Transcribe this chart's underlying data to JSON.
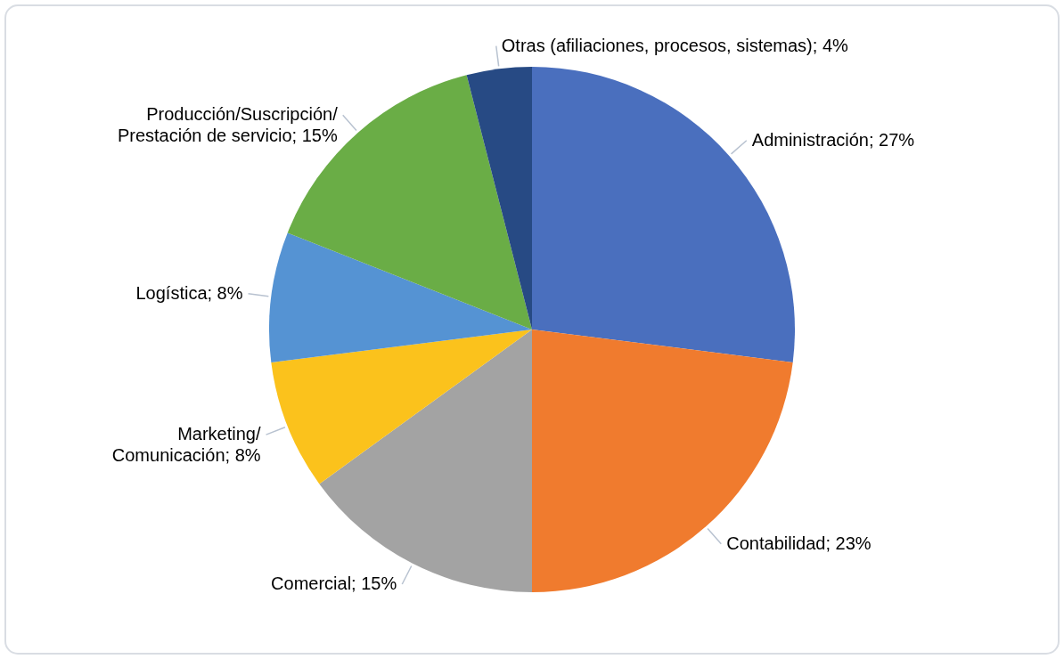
{
  "chart_data": {
    "type": "pie",
    "categories": [
      "Administración",
      "Contabilidad",
      "Comercial",
      "Marketing/Comunicación",
      "Logística",
      "Producción/Suscripción/Prestación de servicio",
      "Otras (afiliaciones, procesos, sistemas)"
    ],
    "values": [
      27,
      23,
      15,
      8,
      8,
      15,
      4
    ],
    "colors": [
      "#4a6fbe",
      "#f07b2e",
      "#a3a3a3",
      "#fbc21c",
      "#5593d3",
      "#6aad46",
      "#274a84"
    ],
    "value_labels": [
      "27%",
      "23%",
      "15%",
      "8%",
      "8%",
      "15%",
      "4%"
    ]
  }
}
